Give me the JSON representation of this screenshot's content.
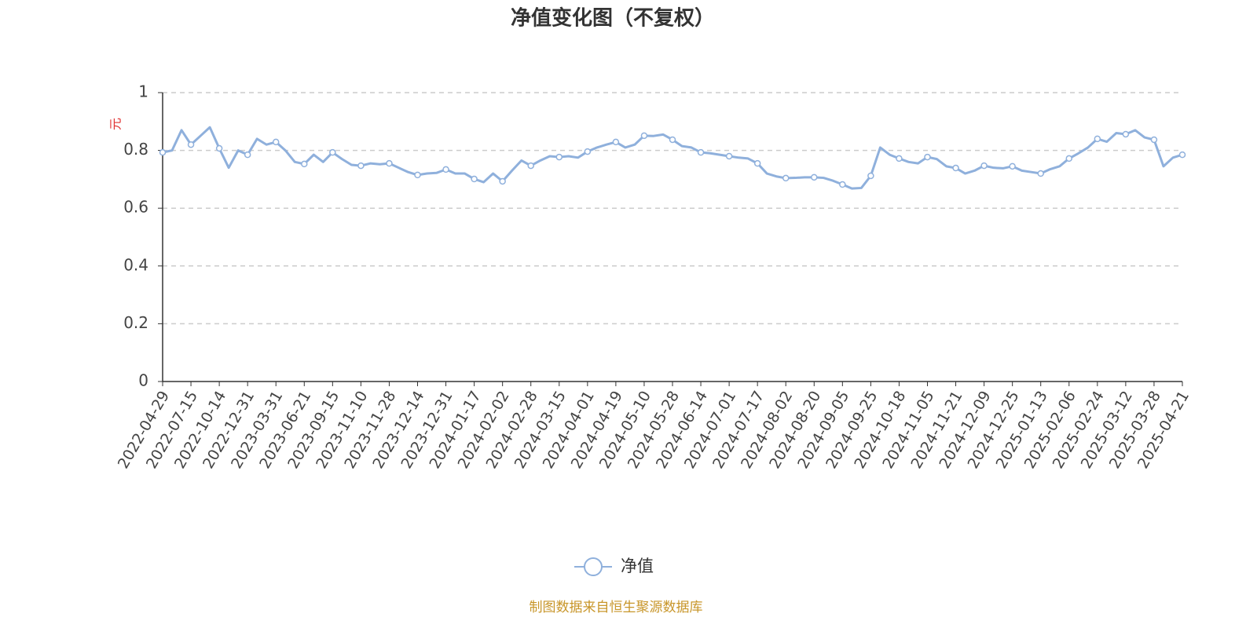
{
  "chart_data": {
    "type": "line",
    "title": "净值变化图（不复权）",
    "y_label": "元",
    "source": "制图数据来自恒生聚源数据库",
    "categories": [
      "2022-04-29",
      null,
      null,
      "2022-07-15",
      null,
      null,
      "2022-10-14",
      null,
      null,
      "2022-12-31",
      null,
      null,
      "2023-03-31",
      null,
      null,
      "2023-06-21",
      null,
      null,
      "2023-09-15",
      null,
      null,
      "2023-11-10",
      null,
      null,
      "2023-11-28",
      null,
      null,
      "2023-12-14",
      null,
      null,
      "2023-12-31",
      null,
      null,
      "2024-01-17",
      null,
      null,
      "2024-02-02",
      null,
      null,
      "2024-02-28",
      null,
      null,
      "2024-03-15",
      null,
      null,
      "2024-04-01",
      null,
      null,
      "2024-04-19",
      null,
      null,
      "2024-05-10",
      null,
      null,
      "2024-05-28",
      null,
      null,
      "2024-06-14",
      null,
      null,
      "2024-07-01",
      null,
      null,
      "2024-07-17",
      null,
      null,
      "2024-08-02",
      null,
      null,
      "2024-08-20",
      null,
      null,
      "2024-09-05",
      null,
      null,
      "2024-09-25",
      null,
      null,
      "2024-10-18",
      null,
      null,
      "2024-11-05",
      null,
      null,
      "2024-11-21",
      null,
      null,
      "2024-12-09",
      null,
      null,
      "2024-12-25",
      null,
      null,
      "2025-01-13",
      null,
      null,
      "2025-02-06",
      null,
      null,
      "2025-02-24",
      null,
      null,
      "2025-03-12",
      null,
      null,
      "2025-03-28",
      null,
      null,
      "2025-04-21"
    ],
    "series": [
      {
        "name": "净值",
        "color": "#8fb0dc",
        "values": [
          0.793,
          0.8,
          0.87,
          0.82,
          0.85,
          0.88,
          0.807,
          0.74,
          0.8,
          0.785,
          0.84,
          0.82,
          0.829,
          0.8,
          0.76,
          0.753,
          0.785,
          0.76,
          0.793,
          0.77,
          0.75,
          0.747,
          0.755,
          0.752,
          0.755,
          0.74,
          0.725,
          0.715,
          0.72,
          0.722,
          0.734,
          0.72,
          0.72,
          0.701,
          0.69,
          0.72,
          0.693,
          0.73,
          0.765,
          0.747,
          0.765,
          0.78,
          0.777,
          0.78,
          0.775,
          0.796,
          0.81,
          0.82,
          0.829,
          0.81,
          0.82,
          0.851,
          0.85,
          0.855,
          0.837,
          0.815,
          0.81,
          0.793,
          0.79,
          0.785,
          0.78,
          0.775,
          0.772,
          0.755,
          0.72,
          0.71,
          0.704,
          0.705,
          0.707,
          0.707,
          0.705,
          0.695,
          0.682,
          0.668,
          0.67,
          0.712,
          0.81,
          0.785,
          0.772,
          0.76,
          0.755,
          0.777,
          0.77,
          0.745,
          0.739,
          0.72,
          0.73,
          0.747,
          0.74,
          0.738,
          0.745,
          0.73,
          0.725,
          0.72,
          0.735,
          0.745,
          0.772,
          0.79,
          0.81,
          0.84,
          0.83,
          0.86,
          0.856,
          0.87,
          0.845,
          0.837,
          0.745,
          0.775,
          0.785
        ]
      }
    ],
    "ylim": [
      0,
      1
    ],
    "yticks": [
      0,
      0.2,
      0.4,
      0.6,
      0.8,
      1
    ],
    "grid": true
  }
}
